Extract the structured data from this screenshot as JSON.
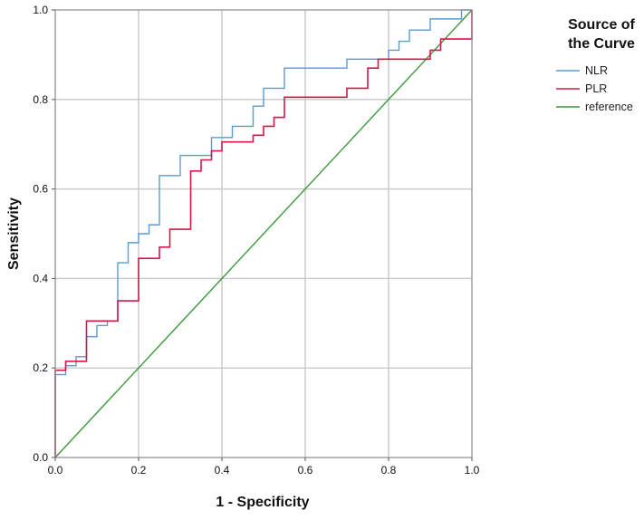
{
  "chart_data": {
    "type": "line",
    "title": "",
    "xlabel": "1 - Specificity",
    "ylabel": "Sensitivity",
    "xlim": [
      0,
      1
    ],
    "ylim": [
      0,
      1
    ],
    "x_ticks": [
      "0.0",
      "0.2",
      "0.4",
      "0.6",
      "0.8",
      "1.0"
    ],
    "y_ticks": [
      "0.0",
      "0.2",
      "0.4",
      "0.6",
      "0.8",
      "1.0"
    ],
    "grid": true,
    "legend": {
      "title_lines": [
        "Source of",
        "the Curve"
      ],
      "placement": "right"
    },
    "series": [
      {
        "name": "NLR",
        "color": "#5b9bd5",
        "points": [
          [
            0.0,
            0.0
          ],
          [
            0.0,
            0.185
          ],
          [
            0.025,
            0.185
          ],
          [
            0.025,
            0.205
          ],
          [
            0.05,
            0.205
          ],
          [
            0.05,
            0.225
          ],
          [
            0.075,
            0.225
          ],
          [
            0.075,
            0.27
          ],
          [
            0.1,
            0.27
          ],
          [
            0.1,
            0.295
          ],
          [
            0.125,
            0.295
          ],
          [
            0.125,
            0.305
          ],
          [
            0.15,
            0.305
          ],
          [
            0.15,
            0.435
          ],
          [
            0.175,
            0.435
          ],
          [
            0.175,
            0.48
          ],
          [
            0.2,
            0.48
          ],
          [
            0.2,
            0.5
          ],
          [
            0.225,
            0.5
          ],
          [
            0.225,
            0.52
          ],
          [
            0.25,
            0.52
          ],
          [
            0.25,
            0.63
          ],
          [
            0.3,
            0.63
          ],
          [
            0.3,
            0.675
          ],
          [
            0.375,
            0.675
          ],
          [
            0.375,
            0.715
          ],
          [
            0.425,
            0.715
          ],
          [
            0.425,
            0.74
          ],
          [
            0.475,
            0.74
          ],
          [
            0.475,
            0.785
          ],
          [
            0.5,
            0.785
          ],
          [
            0.5,
            0.825
          ],
          [
            0.55,
            0.825
          ],
          [
            0.55,
            0.87
          ],
          [
            0.7,
            0.87
          ],
          [
            0.7,
            0.89
          ],
          [
            0.8,
            0.89
          ],
          [
            0.8,
            0.91
          ],
          [
            0.825,
            0.91
          ],
          [
            0.825,
            0.93
          ],
          [
            0.85,
            0.93
          ],
          [
            0.85,
            0.955
          ],
          [
            0.9,
            0.955
          ],
          [
            0.9,
            0.98
          ],
          [
            0.975,
            0.98
          ],
          [
            0.975,
            1.0
          ],
          [
            1.0,
            1.0
          ]
        ]
      },
      {
        "name": "PLR",
        "color": "#d2194a",
        "points": [
          [
            0.0,
            0.0
          ],
          [
            0.0,
            0.195
          ],
          [
            0.025,
            0.195
          ],
          [
            0.025,
            0.215
          ],
          [
            0.075,
            0.215
          ],
          [
            0.075,
            0.305
          ],
          [
            0.15,
            0.305
          ],
          [
            0.15,
            0.35
          ],
          [
            0.2,
            0.35
          ],
          [
            0.2,
            0.445
          ],
          [
            0.25,
            0.445
          ],
          [
            0.25,
            0.47
          ],
          [
            0.275,
            0.47
          ],
          [
            0.275,
            0.51
          ],
          [
            0.325,
            0.51
          ],
          [
            0.325,
            0.64
          ],
          [
            0.35,
            0.64
          ],
          [
            0.35,
            0.665
          ],
          [
            0.375,
            0.665
          ],
          [
            0.375,
            0.685
          ],
          [
            0.4,
            0.685
          ],
          [
            0.4,
            0.705
          ],
          [
            0.475,
            0.705
          ],
          [
            0.475,
            0.72
          ],
          [
            0.5,
            0.72
          ],
          [
            0.5,
            0.74
          ],
          [
            0.525,
            0.74
          ],
          [
            0.525,
            0.76
          ],
          [
            0.55,
            0.76
          ],
          [
            0.55,
            0.805
          ],
          [
            0.7,
            0.805
          ],
          [
            0.7,
            0.825
          ],
          [
            0.75,
            0.825
          ],
          [
            0.75,
            0.87
          ],
          [
            0.775,
            0.87
          ],
          [
            0.775,
            0.89
          ],
          [
            0.9,
            0.89
          ],
          [
            0.9,
            0.91
          ],
          [
            0.925,
            0.91
          ],
          [
            0.925,
            0.935
          ],
          [
            1.0,
            0.935
          ],
          [
            1.0,
            1.0
          ]
        ]
      },
      {
        "name": "reference",
        "color": "#3a9a3a",
        "points": [
          [
            0.0,
            0.0
          ],
          [
            1.0,
            1.0
          ]
        ]
      }
    ]
  }
}
